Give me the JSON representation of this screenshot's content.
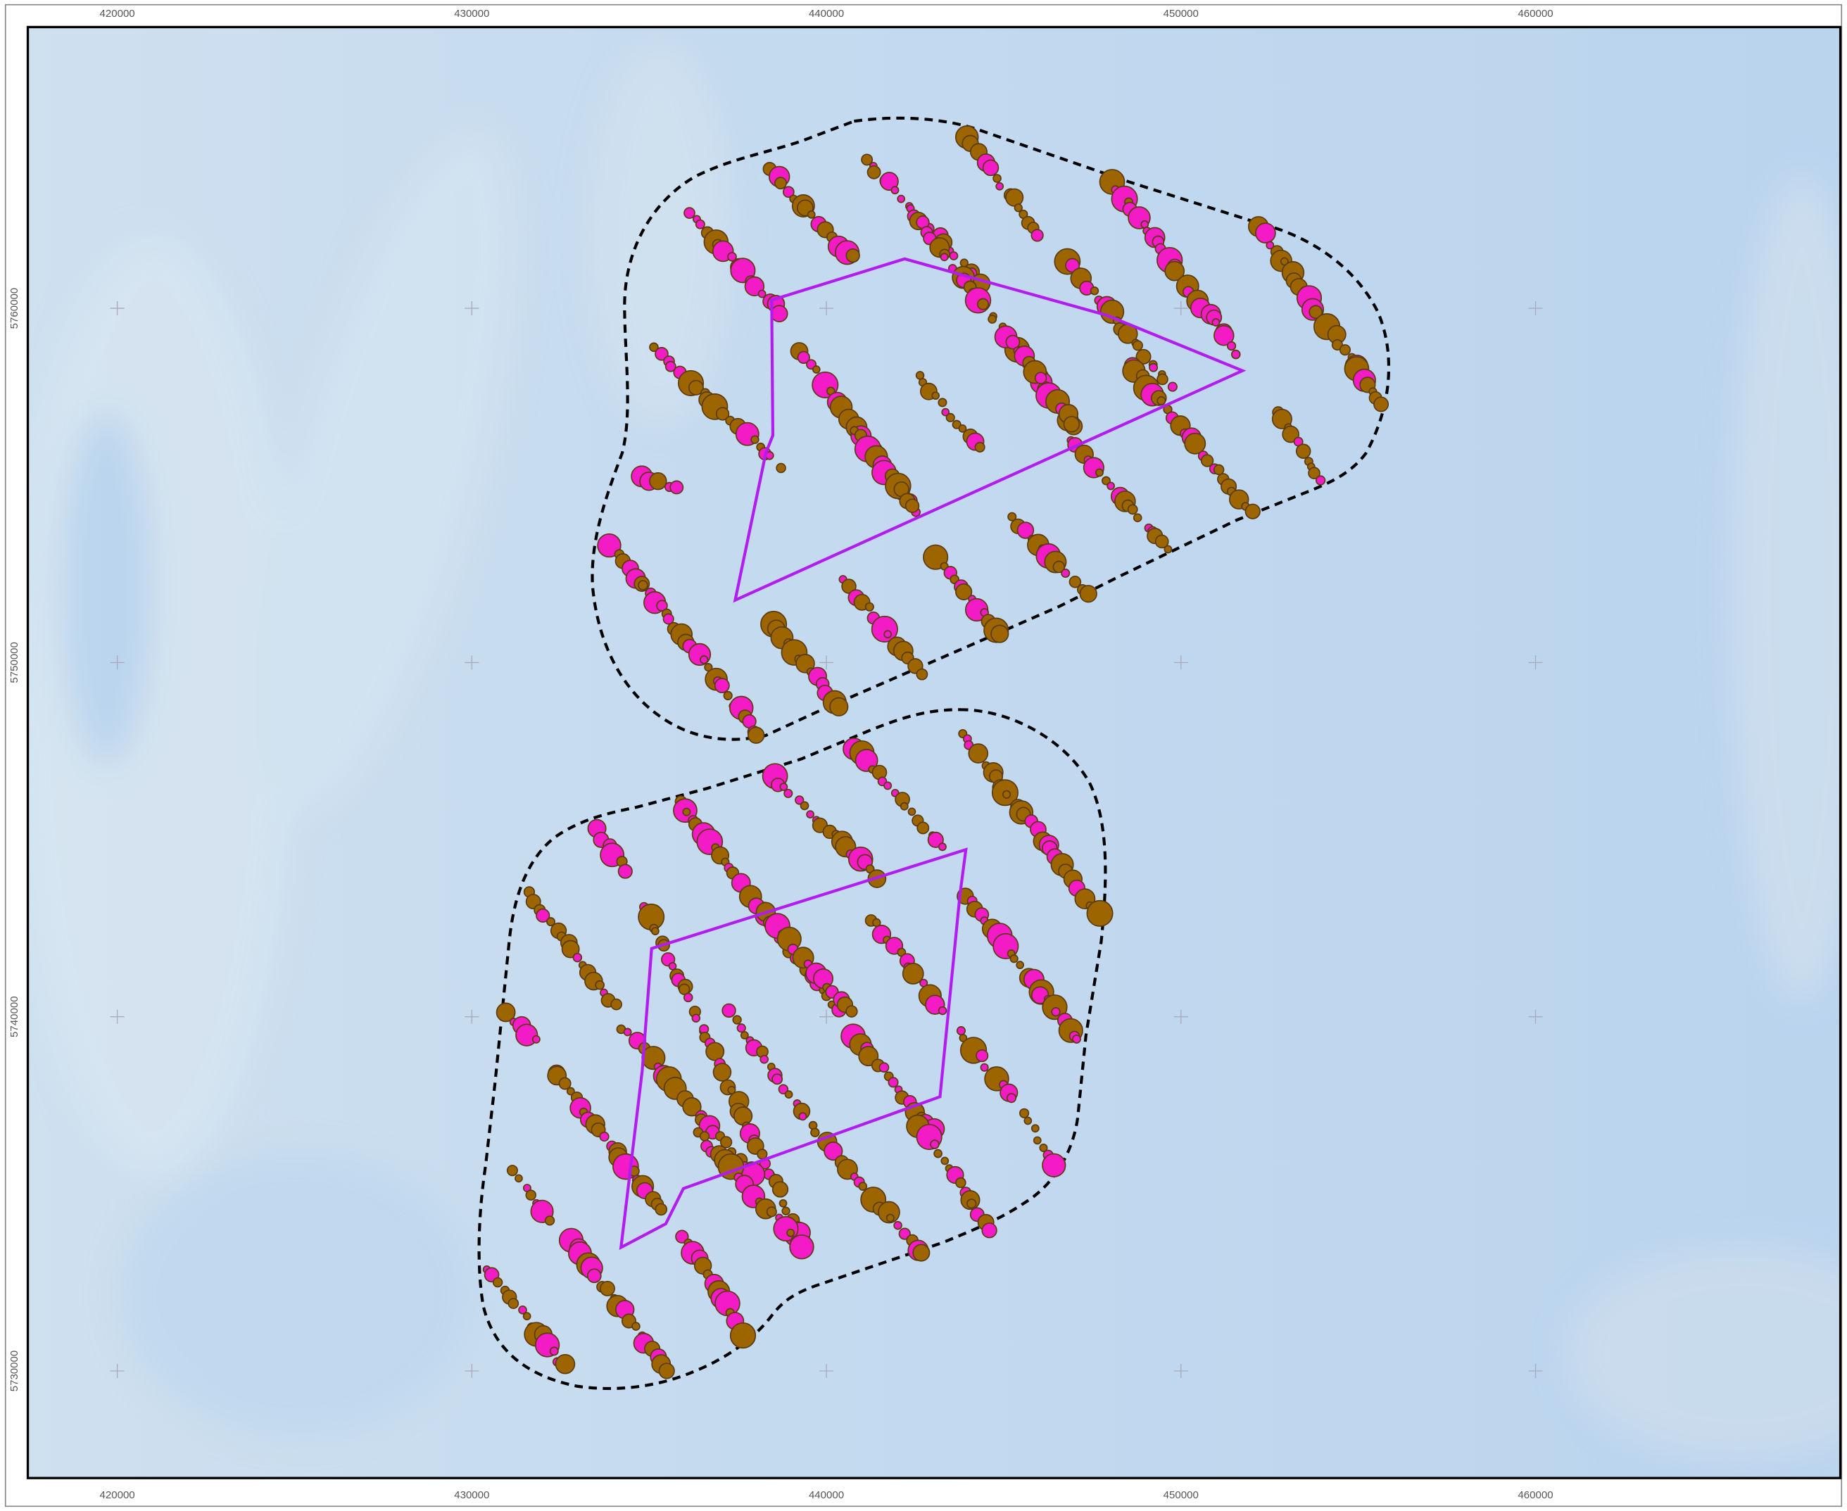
{
  "grid": {
    "x_labels": [
      "420000",
      "430000",
      "440000",
      "450000",
      "460000"
    ],
    "y_labels": [
      "5760000",
      "5750000",
      "5740000",
      "5730000"
    ]
  }
}
